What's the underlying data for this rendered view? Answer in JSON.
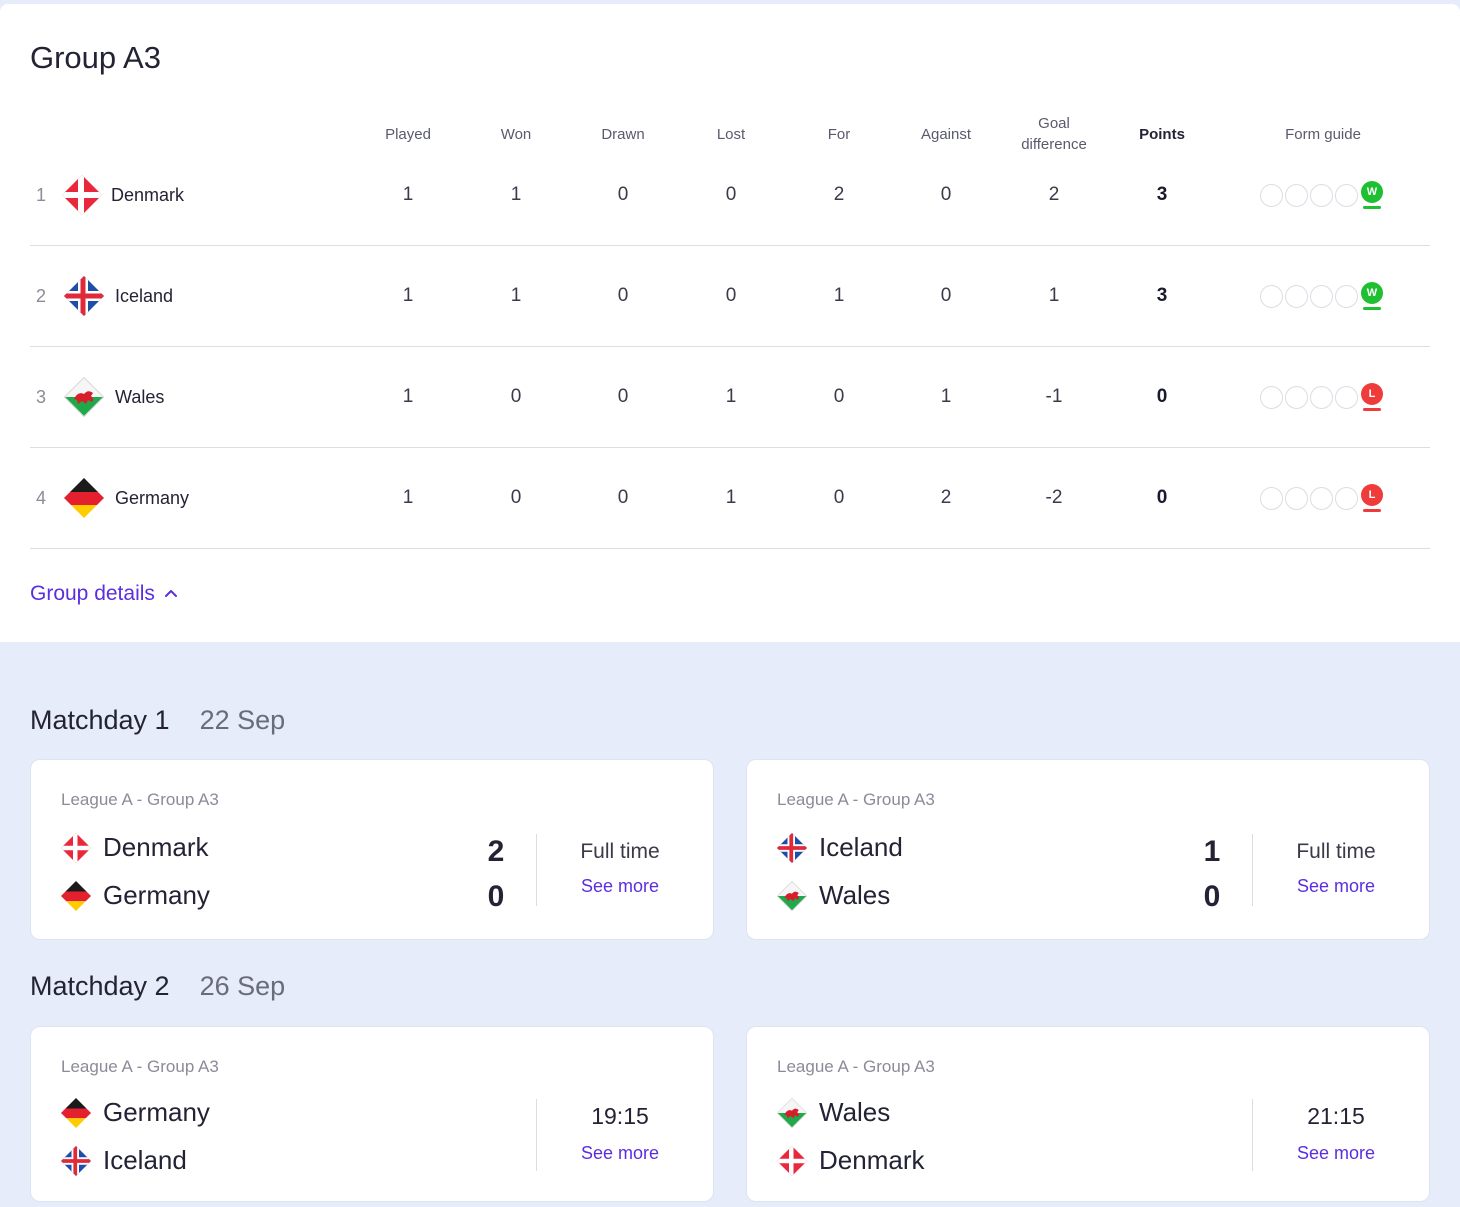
{
  "group": {
    "title": "Group A3",
    "columns": [
      "Played",
      "Won",
      "Drawn",
      "Lost",
      "For",
      "Against",
      "Goal difference",
      "Points",
      "Form guide"
    ],
    "rows": [
      {
        "rank": "1",
        "team": "Denmark",
        "flag": "denmark-flag",
        "played": "1",
        "won": "1",
        "drawn": "0",
        "lost": "0",
        "for": "2",
        "against": "0",
        "gd": "2",
        "points": "3",
        "form": "W"
      },
      {
        "rank": "2",
        "team": "Iceland",
        "flag": "iceland-flag",
        "played": "1",
        "won": "1",
        "drawn": "0",
        "lost": "0",
        "for": "1",
        "against": "0",
        "gd": "1",
        "points": "3",
        "form": "W"
      },
      {
        "rank": "3",
        "team": "Wales",
        "flag": "wales-flag",
        "played": "1",
        "won": "0",
        "drawn": "0",
        "lost": "1",
        "for": "0",
        "against": "1",
        "gd": "-1",
        "points": "0",
        "form": "L"
      },
      {
        "rank": "4",
        "team": "Germany",
        "flag": "germany-flag",
        "played": "1",
        "won": "0",
        "drawn": "0",
        "lost": "1",
        "for": "0",
        "against": "2",
        "gd": "-2",
        "points": "0",
        "form": "L"
      }
    ],
    "details_label": "Group details"
  },
  "matchdays": [
    {
      "title": "Matchday 1",
      "date": "22 Sep",
      "matches": [
        {
          "league": "League A - Group A3",
          "home": "Denmark",
          "away": "Germany",
          "home_score": "2",
          "away_score": "0",
          "status": "Full time",
          "see_more": "See more"
        },
        {
          "league": "League A - Group A3",
          "home": "Iceland",
          "away": "Wales",
          "home_score": "1",
          "away_score": "0",
          "status": "Full time",
          "see_more": "See more"
        }
      ]
    },
    {
      "title": "Matchday 2",
      "date": "26 Sep",
      "matches": [
        {
          "league": "League A - Group A3",
          "home": "Germany",
          "away": "Iceland",
          "status": "19:15",
          "see_more": "See more"
        },
        {
          "league": "League A - Group A3",
          "home": "Wales",
          "away": "Denmark",
          "status": "21:15",
          "see_more": "See more"
        }
      ]
    }
  ],
  "colors": {
    "accent": "#5b2ee0",
    "win": "#1fbf32",
    "loss": "#f03b3b",
    "background": "#e6ecfa"
  }
}
